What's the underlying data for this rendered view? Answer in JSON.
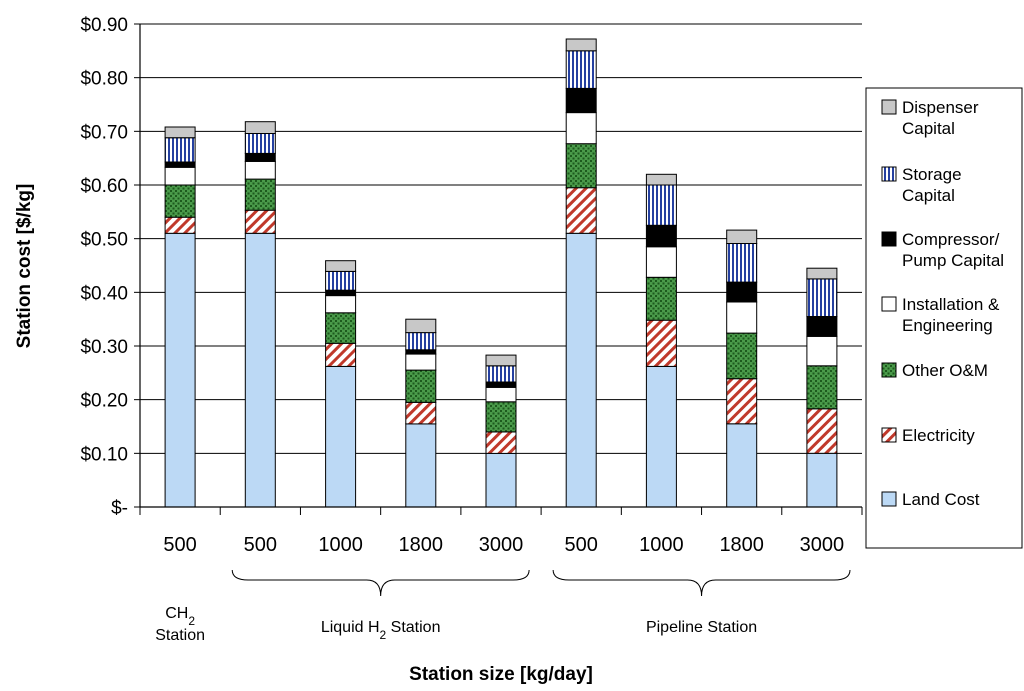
{
  "chart_data": {
    "type": "bar",
    "stacked": true,
    "ylabel": "Station cost [$/kg]",
    "xlabel": "Station size [kg/day]",
    "ylim": [
      0,
      0.9
    ],
    "yticks": [
      0,
      0.1,
      0.2,
      0.3,
      0.4,
      0.5,
      0.6,
      0.7,
      0.8,
      0.9
    ],
    "ytick_labels": [
      "$-",
      "$0.10",
      "$0.20",
      "$0.30",
      "$0.40",
      "$0.50",
      "$0.60",
      "$0.70",
      "$0.80",
      "$0.90"
    ],
    "grid": "horizontal",
    "legend_position": "right",
    "categories": [
      "500",
      "500",
      "1000",
      "1800",
      "3000",
      "500",
      "1000",
      "1800",
      "3000"
    ],
    "groups": [
      {
        "label": "CH",
        "sub": "2",
        "label_after": "",
        "line2": "Station",
        "start": 0,
        "end": 0
      },
      {
        "label": "Liquid H",
        "sub": "2",
        "label_after": " Station",
        "line2": "",
        "start": 1,
        "end": 4
      },
      {
        "label": "Pipeline Station",
        "sub": "",
        "label_after": "",
        "line2": "",
        "start": 5,
        "end": 8
      }
    ],
    "series": [
      {
        "name": "Land Cost",
        "key": "land",
        "color": "#bcd9f5",
        "pattern": "solid",
        "values": [
          0.51,
          0.51,
          0.262,
          0.155,
          0.1,
          0.51,
          0.262,
          0.155,
          0.1
        ]
      },
      {
        "name": "Electricity",
        "key": "elec",
        "color": "#c0392b",
        "pattern": "diagonal",
        "values": [
          0.03,
          0.043,
          0.043,
          0.04,
          0.04,
          0.085,
          0.086,
          0.084,
          0.083
        ]
      },
      {
        "name": "Other O&M",
        "key": "om",
        "color": "#2e7d32",
        "pattern": "dots",
        "values": [
          0.06,
          0.058,
          0.057,
          0.06,
          0.056,
          0.082,
          0.08,
          0.085,
          0.08
        ]
      },
      {
        "name": "Installation & Engineering",
        "key": "inst",
        "color": "#ffffff",
        "pattern": "solid",
        "values": [
          0.033,
          0.033,
          0.032,
          0.03,
          0.027,
          0.058,
          0.057,
          0.058,
          0.055
        ]
      },
      {
        "name": "Compressor/ Pump Capital",
        "key": "comp",
        "color": "#000000",
        "pattern": "solid",
        "values": [
          0.01,
          0.015,
          0.01,
          0.008,
          0.01,
          0.045,
          0.04,
          0.037,
          0.037
        ]
      },
      {
        "name": "Storage Capital",
        "key": "stor",
        "color": "#2540a0",
        "pattern": "vertical",
        "values": [
          0.045,
          0.037,
          0.035,
          0.032,
          0.03,
          0.07,
          0.075,
          0.072,
          0.07
        ]
      },
      {
        "name": "Dispenser Capital",
        "key": "disp",
        "color": "#c8c8c8",
        "pattern": "solid",
        "values": [
          0.02,
          0.022,
          0.02,
          0.025,
          0.02,
          0.022,
          0.02,
          0.025,
          0.02
        ]
      }
    ],
    "legend": [
      {
        "key": "disp",
        "lines": [
          "Dispenser",
          "Capital"
        ]
      },
      {
        "key": "stor",
        "lines": [
          "Storage",
          "Capital"
        ]
      },
      {
        "key": "comp",
        "lines": [
          "Compressor/",
          "Pump Capital"
        ]
      },
      {
        "key": "inst",
        "lines": [
          "Installation &",
          "Engineering"
        ]
      },
      {
        "key": "om",
        "lines": [
          "Other O&M"
        ]
      },
      {
        "key": "elec",
        "lines": [
          "Electricity"
        ]
      },
      {
        "key": "land",
        "lines": [
          "Land Cost"
        ]
      }
    ]
  }
}
